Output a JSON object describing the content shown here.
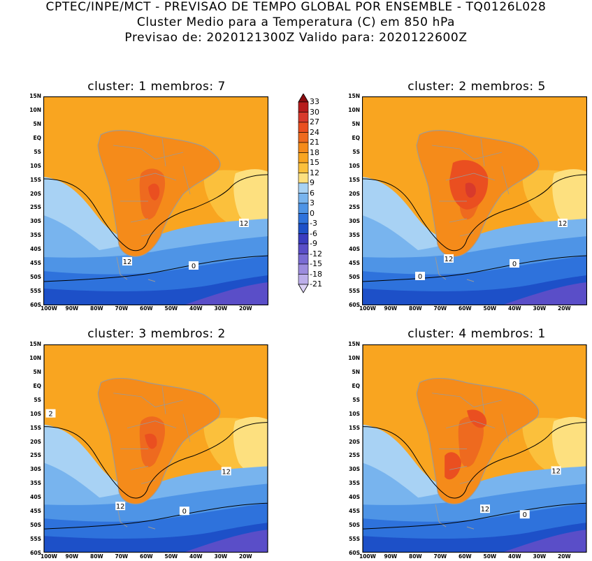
{
  "header": {
    "line1": "CPTEC/INPE/MCT - PREVISAO DE TEMPO GLOBAL POR ENSEMBLE - TQ0126L028",
    "line2": "Cluster Medio para a Temperatura (C) em 850 hPa",
    "line3": "Previsao de: 2020121300Z   Valido para: 2020122600Z"
  },
  "panels": [
    {
      "title": "cluster: 1   membros: 7",
      "contour_labels": [
        "12",
        "12",
        "0"
      ]
    },
    {
      "title": "cluster: 2   membros: 5",
      "contour_labels": [
        "12",
        "12",
        "0",
        "0"
      ]
    },
    {
      "title": "cluster: 3   membros: 2",
      "contour_labels": [
        "2",
        "12",
        "12",
        "0"
      ]
    },
    {
      "title": "cluster: 4   membros: 1",
      "contour_labels": [
        "12",
        "12",
        "0"
      ]
    }
  ],
  "lat_ticks": [
    "15N",
    "10N",
    "5N",
    "EQ",
    "5S",
    "10S",
    "15S",
    "20S",
    "25S",
    "30S",
    "35S",
    "40S",
    "45S",
    "50S",
    "55S",
    "60S"
  ],
  "lon_ticks": [
    "100W",
    "90W",
    "80W",
    "70W",
    "60W",
    "50W",
    "40W",
    "30W",
    "20W"
  ],
  "colorbar": {
    "labels": [
      "33",
      "30",
      "27",
      "24",
      "21",
      "18",
      "15",
      "12",
      "9",
      "6",
      "3",
      "0",
      "-3",
      "-6",
      "-9",
      "-12",
      "-15",
      "-18",
      "-21"
    ],
    "colors": [
      "#8b0c10",
      "#b71c1c",
      "#d83a2c",
      "#ea4f20",
      "#ee6a1f",
      "#f58b1a",
      "#f9a520",
      "#fbc03c",
      "#fde07f",
      "#a8d2f4",
      "#78b4ee",
      "#4e94e6",
      "#2e72dc",
      "#1d50c8",
      "#3a3cc0",
      "#5a4ec8",
      "#7a6cd4",
      "#9c8cde",
      "#bcaeea",
      "#dcd2f6"
    ],
    "unit_note": ""
  },
  "colors": {
    "land_outline": "#9a9a9a",
    "contour": "#000000",
    "background": "#ffffff"
  }
}
